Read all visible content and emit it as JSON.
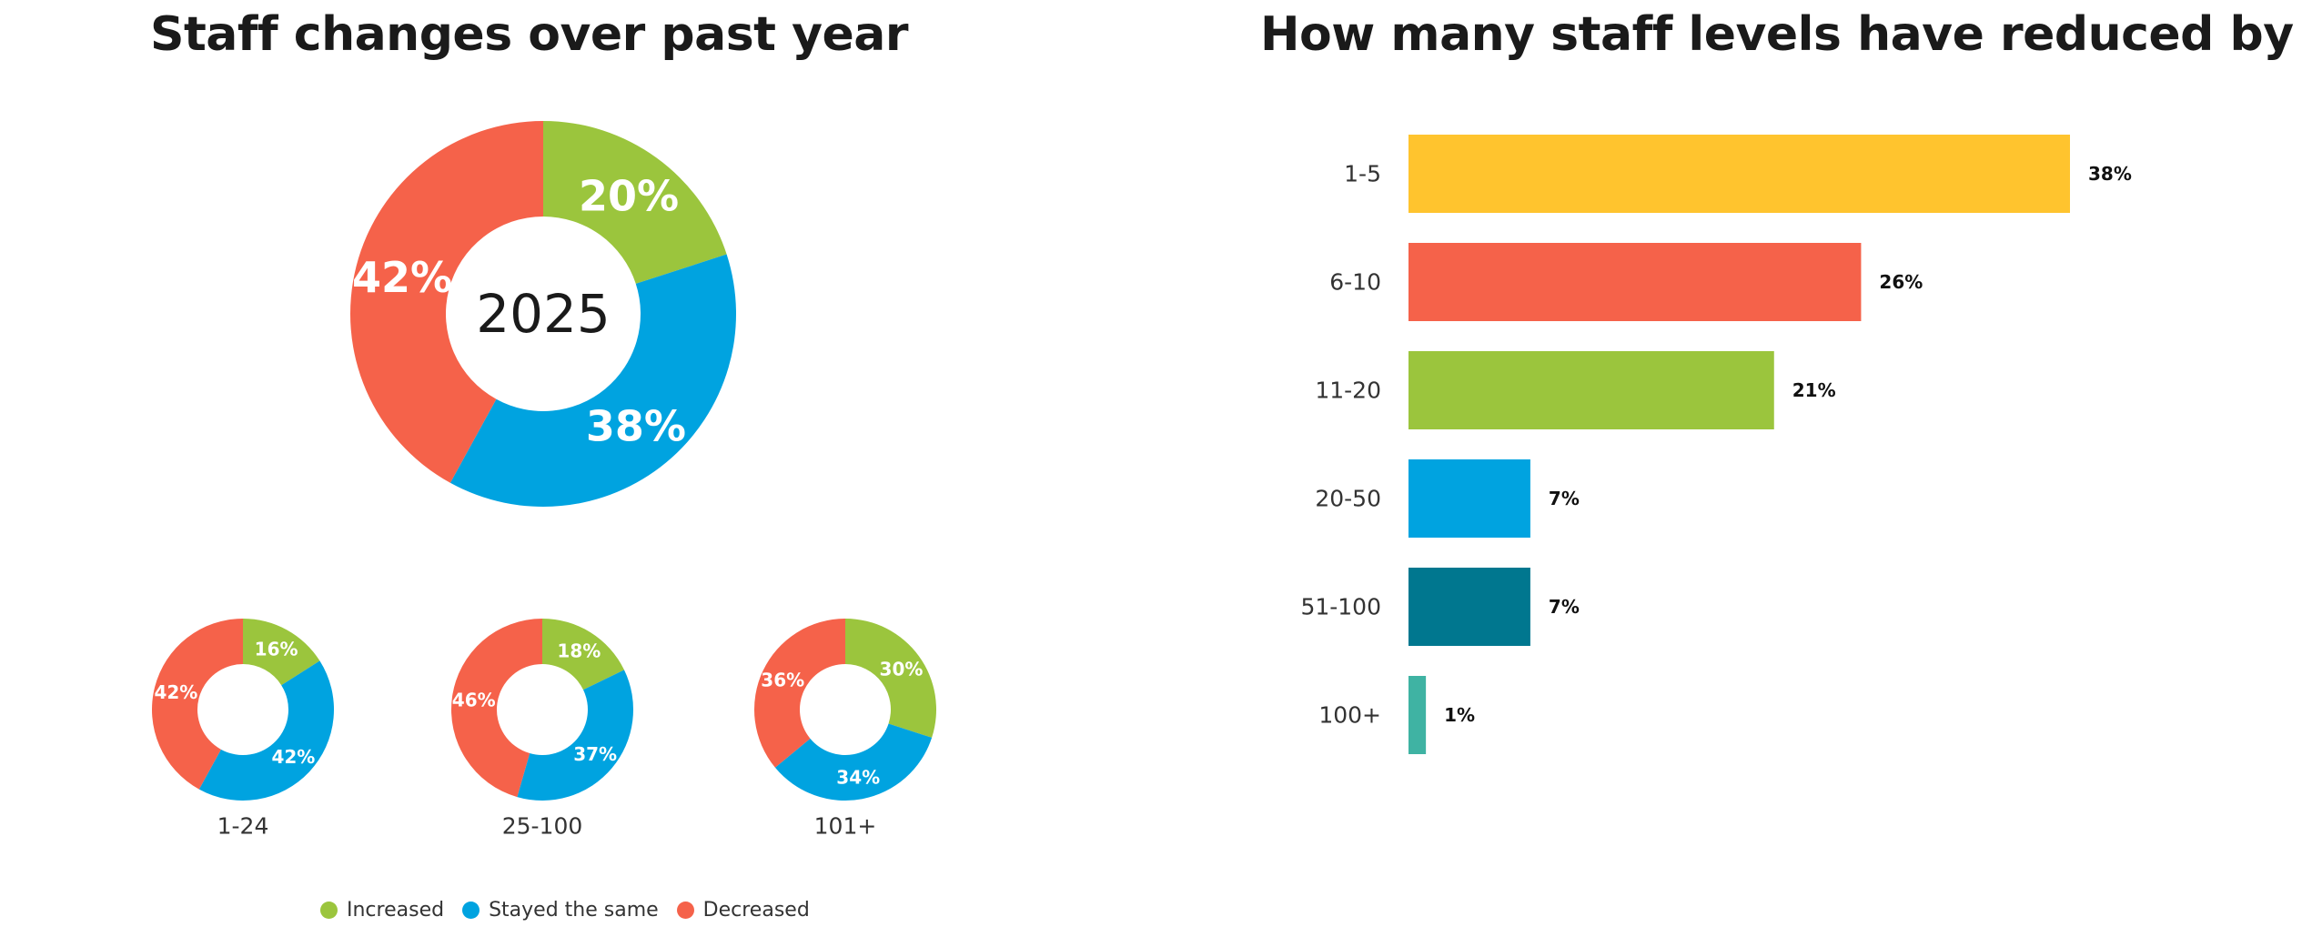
{
  "chart_data": [
    {
      "type": "pie",
      "variant": "donut",
      "title": "Staff changes over past year",
      "legend_position": "bottom",
      "series_names": [
        "Increased",
        "Stayed the same",
        "Decreased"
      ],
      "colors": [
        "#9bc53d",
        "#00a3e0",
        "#f5624a"
      ],
      "charts": [
        {
          "center_label": "2025",
          "values": [
            20,
            38,
            42
          ],
          "labels": [
            "20%",
            "38%",
            "42%"
          ]
        },
        {
          "center_label": "",
          "caption": "1-24",
          "values": [
            16,
            42,
            42
          ],
          "labels": [
            "16%",
            "42%",
            "42%"
          ]
        },
        {
          "center_label": "",
          "caption": "25-100",
          "values": [
            18,
            37,
            46
          ],
          "labels": [
            "18%",
            "37%",
            "46%"
          ]
        },
        {
          "center_label": "",
          "caption": "101+",
          "values": [
            30,
            34,
            36
          ],
          "labels": [
            "30%",
            "34%",
            "36%"
          ]
        }
      ]
    },
    {
      "type": "bar",
      "orientation": "horizontal",
      "title": "How many staff levels have reduced by",
      "categories": [
        "1-5",
        "6-10",
        "11-20",
        "20-50",
        "51-100",
        "100+"
      ],
      "values": [
        38,
        26,
        21,
        7,
        7,
        1
      ],
      "labels": [
        "38%",
        "26%",
        "21%",
        "7%",
        "7%",
        "1%"
      ],
      "colors": [
        "#ffc42e",
        "#f5624a",
        "#9bc53d",
        "#00a3e0",
        "#00778f",
        "#3fb3a3"
      ],
      "xlim": [
        0,
        38
      ],
      "grid": false
    }
  ]
}
